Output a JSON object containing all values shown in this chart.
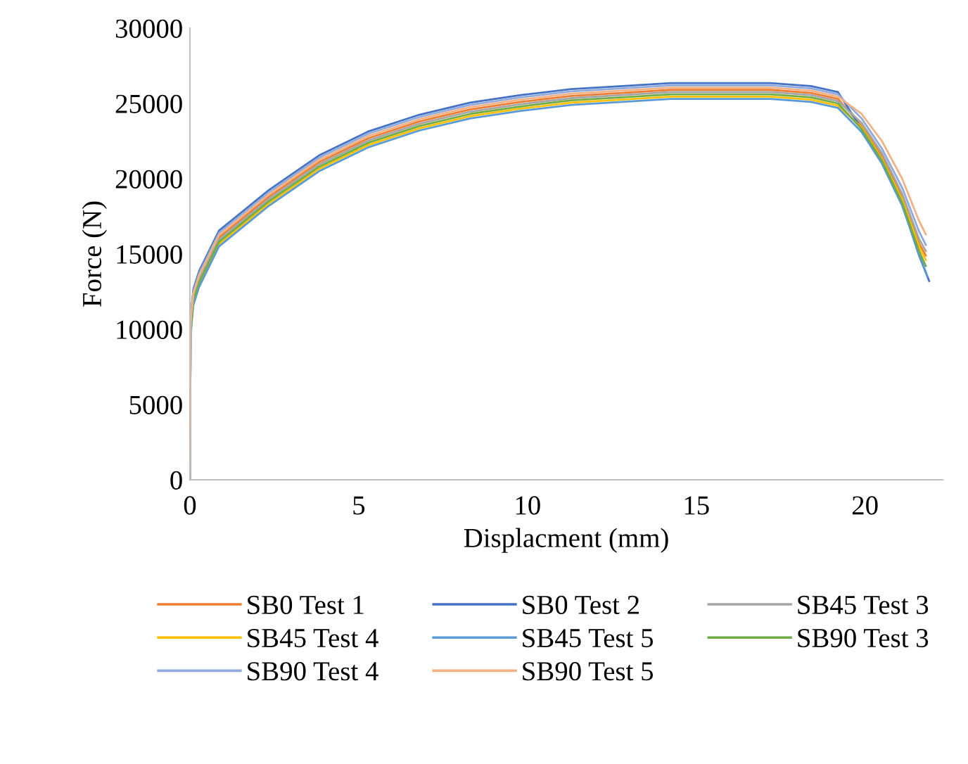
{
  "chart_data": {
    "type": "line",
    "xlabel": "Displacment (mm)",
    "ylabel": "Force (N)",
    "xlim": [
      0,
      22.3
    ],
    "xticks": [
      0,
      5,
      10,
      15,
      20
    ],
    "ylim": [
      0,
      30000
    ],
    "yticks": [
      0,
      5000,
      10000,
      15000,
      20000,
      25000,
      30000
    ],
    "grid": false,
    "legend": "bottom",
    "marker": "none",
    "line_style": "solid",
    "series": [
      {
        "name": "SB0 Test 1",
        "color": "#ed7d31",
        "x": [
          0,
          0.02,
          0.1,
          0.27,
          0.86,
          2.34,
          3.83,
          5.3,
          6.8,
          8.3,
          9.8,
          11.3,
          12.8,
          14.25,
          15.75,
          17.2,
          18.4,
          19.2,
          19.9,
          20.5,
          21.1,
          21.6,
          21.8
        ],
        "values": [
          0,
          10200,
          12200,
          13400,
          16100,
          18800,
          21100,
          22700,
          23800,
          24600,
          25100,
          25500,
          25700,
          25900,
          25900,
          25900,
          25700,
          25300,
          23500,
          21500,
          18800,
          15700,
          14900
        ]
      },
      {
        "name": "SB0 Test 2",
        "color": "#4472c4",
        "x": [
          0,
          0.02,
          0.1,
          0.27,
          0.86,
          2.34,
          3.83,
          5.3,
          6.8,
          8.3,
          9.8,
          11.3,
          12.8,
          14.25,
          15.75,
          17.2,
          18.4,
          19.2,
          19.9,
          20.5,
          21.1,
          21.6,
          21.9
        ],
        "values": [
          0,
          10650,
          12650,
          13850,
          16550,
          19250,
          21550,
          23150,
          24250,
          25050,
          25550,
          25950,
          26150,
          26350,
          26350,
          26350,
          26150,
          25750,
          23300,
          21100,
          18300,
          14900,
          13200
        ]
      },
      {
        "name": "SB45 Test 3",
        "color": "#a5a5a5",
        "x": [
          0,
          0.02,
          0.1,
          0.27,
          0.86,
          2.34,
          3.83,
          5.3,
          6.8,
          8.3,
          9.8,
          11.3,
          12.8,
          14.25,
          15.75,
          17.2,
          18.4,
          19.2,
          19.9,
          20.5,
          21.1,
          21.6,
          21.8
        ],
        "values": [
          0,
          10050,
          12050,
          13250,
          15950,
          18650,
          20950,
          22550,
          23650,
          24450,
          24950,
          25350,
          25550,
          25750,
          25750,
          25750,
          25550,
          25150,
          23700,
          21700,
          19000,
          16000,
          15200
        ]
      },
      {
        "name": "SB45 Test 4",
        "color": "#ffc000",
        "x": [
          0.27,
          0.86,
          2.34,
          3.83,
          5.3,
          6.8,
          8.3,
          9.8,
          11.3,
          12.8,
          14.25,
          15.75,
          17.2,
          18.4,
          19.2,
          19.9,
          20.5,
          21.1,
          21.6,
          21.8
        ],
        "values": [
          12950,
          15650,
          18350,
          20650,
          22250,
          23350,
          24150,
          24650,
          25050,
          25250,
          25450,
          25450,
          25450,
          25250,
          24850,
          23400,
          21300,
          18600,
          15500,
          14600
        ]
      },
      {
        "name": "SB45 Test 5",
        "color": "#5b9bd5",
        "x": [
          0,
          0.02,
          0.1,
          0.27,
          0.86,
          2.34,
          3.83,
          5.3,
          6.8,
          8.3,
          9.8,
          11.3,
          12.8,
          14.25,
          15.75,
          17.2,
          18.4,
          19.2,
          19.9,
          20.5,
          21.1,
          21.6,
          21.85
        ],
        "values": [
          0,
          9600,
          11600,
          12800,
          15500,
          18200,
          20500,
          22100,
          23200,
          24000,
          24500,
          24900,
          25100,
          25300,
          25300,
          25300,
          25100,
          24700,
          23100,
          21000,
          18200,
          15000,
          13500
        ]
      },
      {
        "name": "SB90 Test 3",
        "color": "#70ad47",
        "x": [
          0,
          0.02,
          0.1,
          0.27,
          0.86,
          2.34,
          3.83,
          5.3,
          6.8,
          8.3,
          9.8,
          11.3,
          12.8,
          14.25,
          15.75,
          17.2,
          18.4,
          19.2,
          19.9,
          20.5,
          21.1,
          21.6,
          21.8
        ],
        "values": [
          0,
          9900,
          11900,
          13100,
          15800,
          18500,
          20800,
          22400,
          23500,
          24300,
          24800,
          25200,
          25400,
          25600,
          25600,
          25600,
          25400,
          25000,
          23300,
          21200,
          18400,
          15200,
          14200
        ]
      },
      {
        "name": "SB90 Test 4",
        "color": "#8faadc",
        "x": [
          0,
          0.02,
          0.1,
          0.27,
          0.86,
          2.34,
          3.83,
          5.3,
          6.8,
          8.3,
          9.8,
          11.3,
          12.8,
          14.25,
          15.75,
          17.2,
          18.4,
          19.2,
          19.9,
          20.5,
          21.1,
          21.6,
          21.8
        ],
        "values": [
          0,
          10500,
          12500,
          13700,
          16400,
          19100,
          21400,
          23000,
          24100,
          24900,
          25400,
          25800,
          26000,
          26200,
          26200,
          26200,
          26000,
          25600,
          24000,
          22000,
          19400,
          16500,
          15600
        ]
      },
      {
        "name": "SB90 Test 5",
        "color": "#f4b183",
        "x": [
          0,
          0.02,
          0.1,
          0.27,
          0.86,
          2.34,
          3.83,
          5.3,
          6.8,
          8.3,
          9.8,
          11.3,
          12.8,
          14.25,
          15.75,
          17.2,
          18.4,
          19.2,
          19.9,
          20.5,
          21.1,
          21.6,
          21.8
        ],
        "values": [
          0,
          10350,
          12350,
          13550,
          16250,
          18950,
          21250,
          22850,
          23950,
          24750,
          25250,
          25650,
          25850,
          26050,
          26050,
          26050,
          25850,
          25450,
          24300,
          22500,
          20000,
          17200,
          16300
        ]
      }
    ]
  }
}
